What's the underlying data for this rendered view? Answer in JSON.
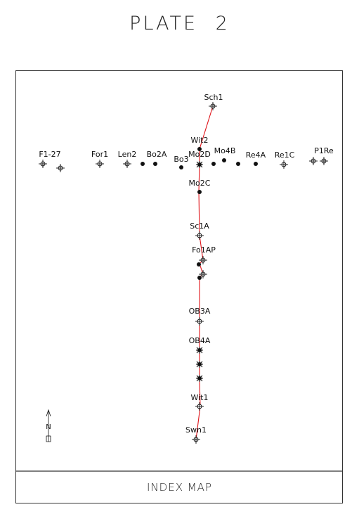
{
  "plate_title": "PLATE   2",
  "caption": "INDEX MAP",
  "north_label": "N",
  "colors": {
    "line": "#e0141a",
    "ink": "#111111",
    "frame": "#333333"
  },
  "wells": [
    {
      "id": "Sch1",
      "label": "Sch1",
      "symbol": "open"
    },
    {
      "id": "Wit2",
      "label": "Wit2",
      "symbol": "filled"
    },
    {
      "id": "Mo2D",
      "label": "Mo2D",
      "symbol": "star"
    },
    {
      "id": "Mo4B",
      "label": "Mo4B",
      "symbol": "filled"
    },
    {
      "id": "Re4A",
      "label": "Re4A",
      "symbol": "filled"
    },
    {
      "id": "Re1C",
      "label": "Re1C",
      "symbol": "open"
    },
    {
      "id": "P1Re",
      "label": "P1Re",
      "symbol": "open"
    },
    {
      "id": "F1-27",
      "label": "F1-27",
      "symbol": "open"
    },
    {
      "id": "For1",
      "label": "For1",
      "symbol": "open"
    },
    {
      "id": "Len2",
      "label": "Len2",
      "symbol": "open"
    },
    {
      "id": "Bo2A",
      "label": "Bo2A",
      "symbol": "filled"
    },
    {
      "id": "Bo3",
      "label": "Bo3",
      "symbol": "filled"
    },
    {
      "id": "Mo2C",
      "label": "Mo2C",
      "symbol": "filled"
    },
    {
      "id": "Sc1A",
      "label": "Sc1A",
      "symbol": "open"
    },
    {
      "id": "Fo1AP",
      "label": "Fo1AP",
      "symbol": "open"
    },
    {
      "id": "OB3A",
      "label": "OB3A",
      "symbol": "open"
    },
    {
      "id": "OB4A",
      "label": "OB4A",
      "symbol": "star"
    },
    {
      "id": "Wit1",
      "label": "Wit1",
      "symbol": "open"
    },
    {
      "id": "Swn1",
      "label": "Swn1",
      "symbol": "open"
    }
  ]
}
